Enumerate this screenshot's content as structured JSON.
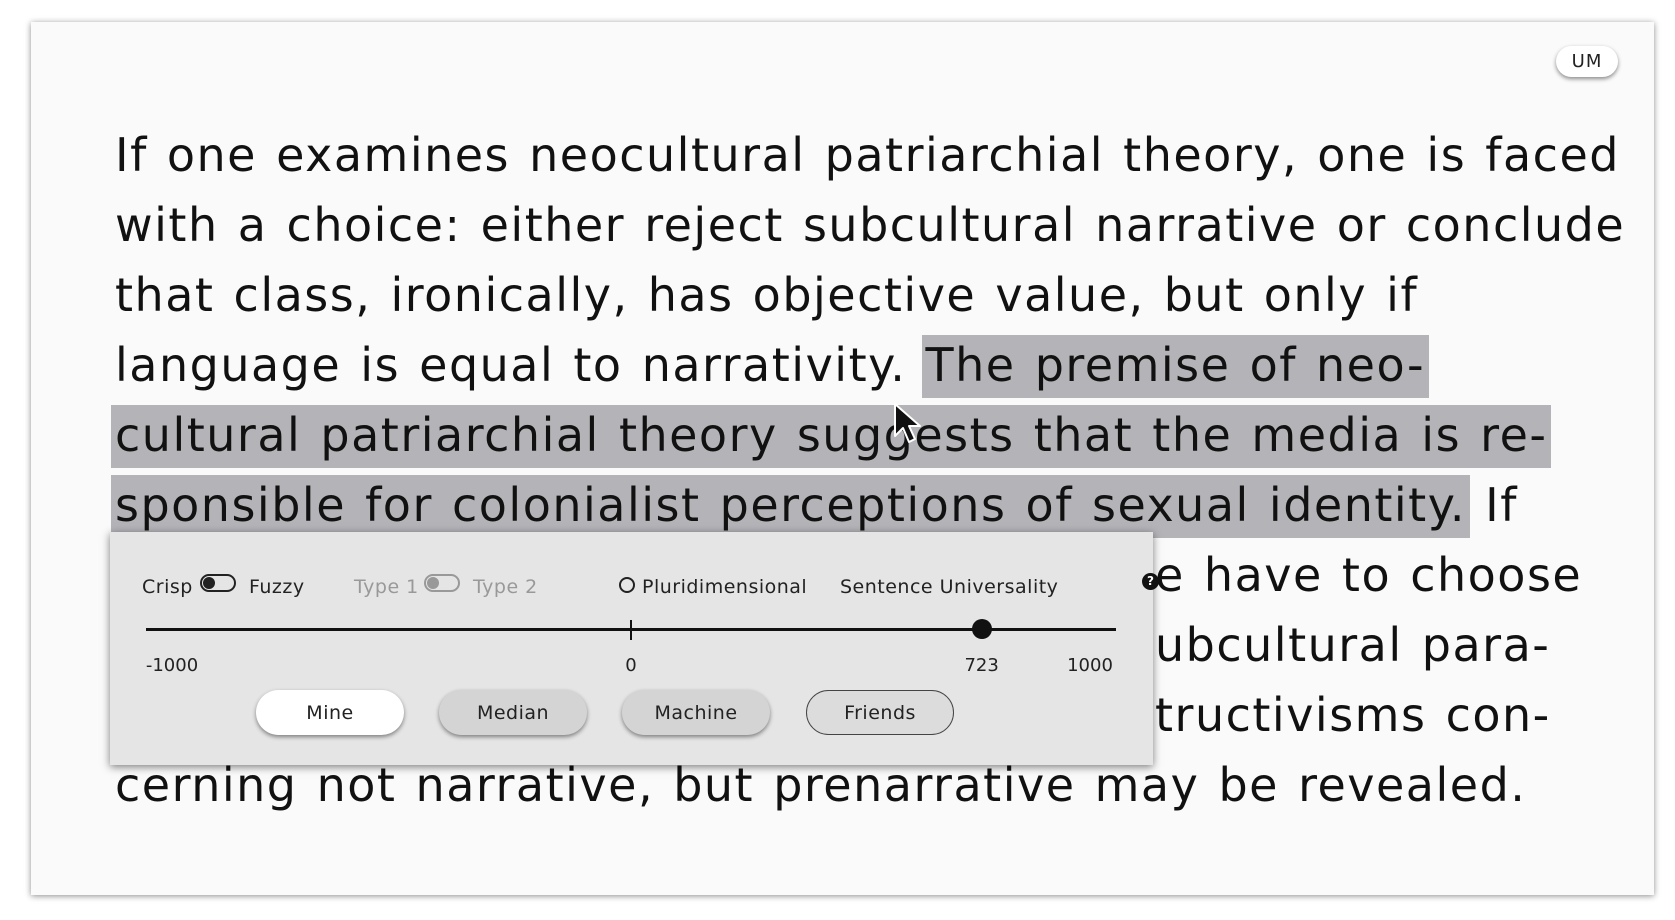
{
  "user_badge": "UM",
  "text": {
    "before": "If one examines neocultural patriarchial theory, one is faced with a choice: either reject subcultural narrative or conclude that class, ironically, has objective value, but only if language is equal to narrativity. ",
    "highlight_1": "The premise of neo-",
    "highlight_2": "cultural patriarchial theory suggests that the media is re-",
    "highlight_3": "sponsible for colonialist perceptions of sexual identity.",
    "after_1": " If",
    "line_7_visible": "e have to choose",
    "line_8_visible": "ubcultural para-",
    "line_9_visible": "tructivisms con-",
    "line_10": "cerning not narrative, but prenarrative may be revealed."
  },
  "panel": {
    "toggle_1": {
      "left_label": "Crisp",
      "right_label": "Fuzzy",
      "state": "left"
    },
    "toggle_2": {
      "left_label": "Type 1",
      "right_label": "Type 2",
      "state": "left",
      "disabled": true
    },
    "radio_label": "Pluridimensional",
    "metric_label": "Sentence Universality",
    "help_glyph": "?",
    "slider": {
      "min": -1000,
      "max": 1000,
      "value": 723,
      "min_label": "-1000",
      "zero_label": "0",
      "value_label": "723",
      "max_label": "1000"
    },
    "buttons": [
      {
        "label": "Mine",
        "state": "active"
      },
      {
        "label": "Median",
        "state": "normal"
      },
      {
        "label": "Machine",
        "state": "normal"
      },
      {
        "label": "Friends",
        "state": "outlined"
      }
    ]
  }
}
